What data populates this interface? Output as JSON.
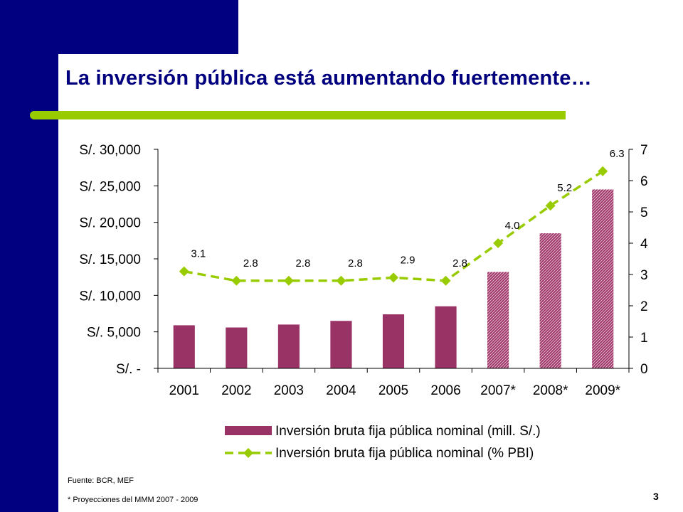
{
  "slide": {
    "title": "La inversión pública está aumentando fuertemente…",
    "source_note": "Fuente: BCR, MEF",
    "projection_note": "* Proyecciones del MMM 2007 - 2009",
    "page_number": "3"
  },
  "colors": {
    "navy": "#000080",
    "title": "#00007f",
    "accent_green": "#99cc00",
    "bar": "#993366",
    "line": "#99cc00"
  },
  "chart_data": {
    "type": "bar",
    "categories": [
      "2001",
      "2002",
      "2003",
      "2004",
      "2005",
      "2006",
      "2007*",
      "2008*",
      "2009*"
    ],
    "y_tick_labels": [
      "S/. 30,000",
      "S/. 25,000",
      "S/. 20,000",
      "S/. 15,000",
      "S/. 10,000",
      "S/. 5,000",
      "S/. -"
    ],
    "y_ticks": [
      30000,
      25000,
      20000,
      15000,
      10000,
      5000,
      0
    ],
    "y2_tick_labels": [
      "7",
      "6",
      "5",
      "4",
      "3",
      "2",
      "1",
      "0"
    ],
    "y2_ticks": [
      7,
      6,
      5,
      4,
      3,
      2,
      1,
      0
    ],
    "ylim": [
      0,
      30000
    ],
    "y2lim": [
      0,
      7
    ],
    "projected_from_index": 6,
    "series": [
      {
        "name": "Inversión bruta fija pública nominal (mill. S/.)",
        "type": "bar",
        "axis": "left",
        "values": [
          5900,
          5600,
          6000,
          6500,
          7400,
          8500,
          13200,
          18500,
          24500
        ]
      },
      {
        "name": "Inversión bruta fija pública nominal (% PBI)",
        "type": "line",
        "axis": "right",
        "values": [
          3.1,
          2.8,
          2.8,
          2.8,
          2.9,
          2.8,
          4.0,
          5.2,
          6.3
        ],
        "labels": [
          "3.1",
          "2.8",
          "2.8",
          "2.8",
          "2.9",
          "2.8",
          "4.0",
          "5.2",
          "6.3"
        ]
      }
    ],
    "legend_position": "bottom",
    "grid": false
  }
}
